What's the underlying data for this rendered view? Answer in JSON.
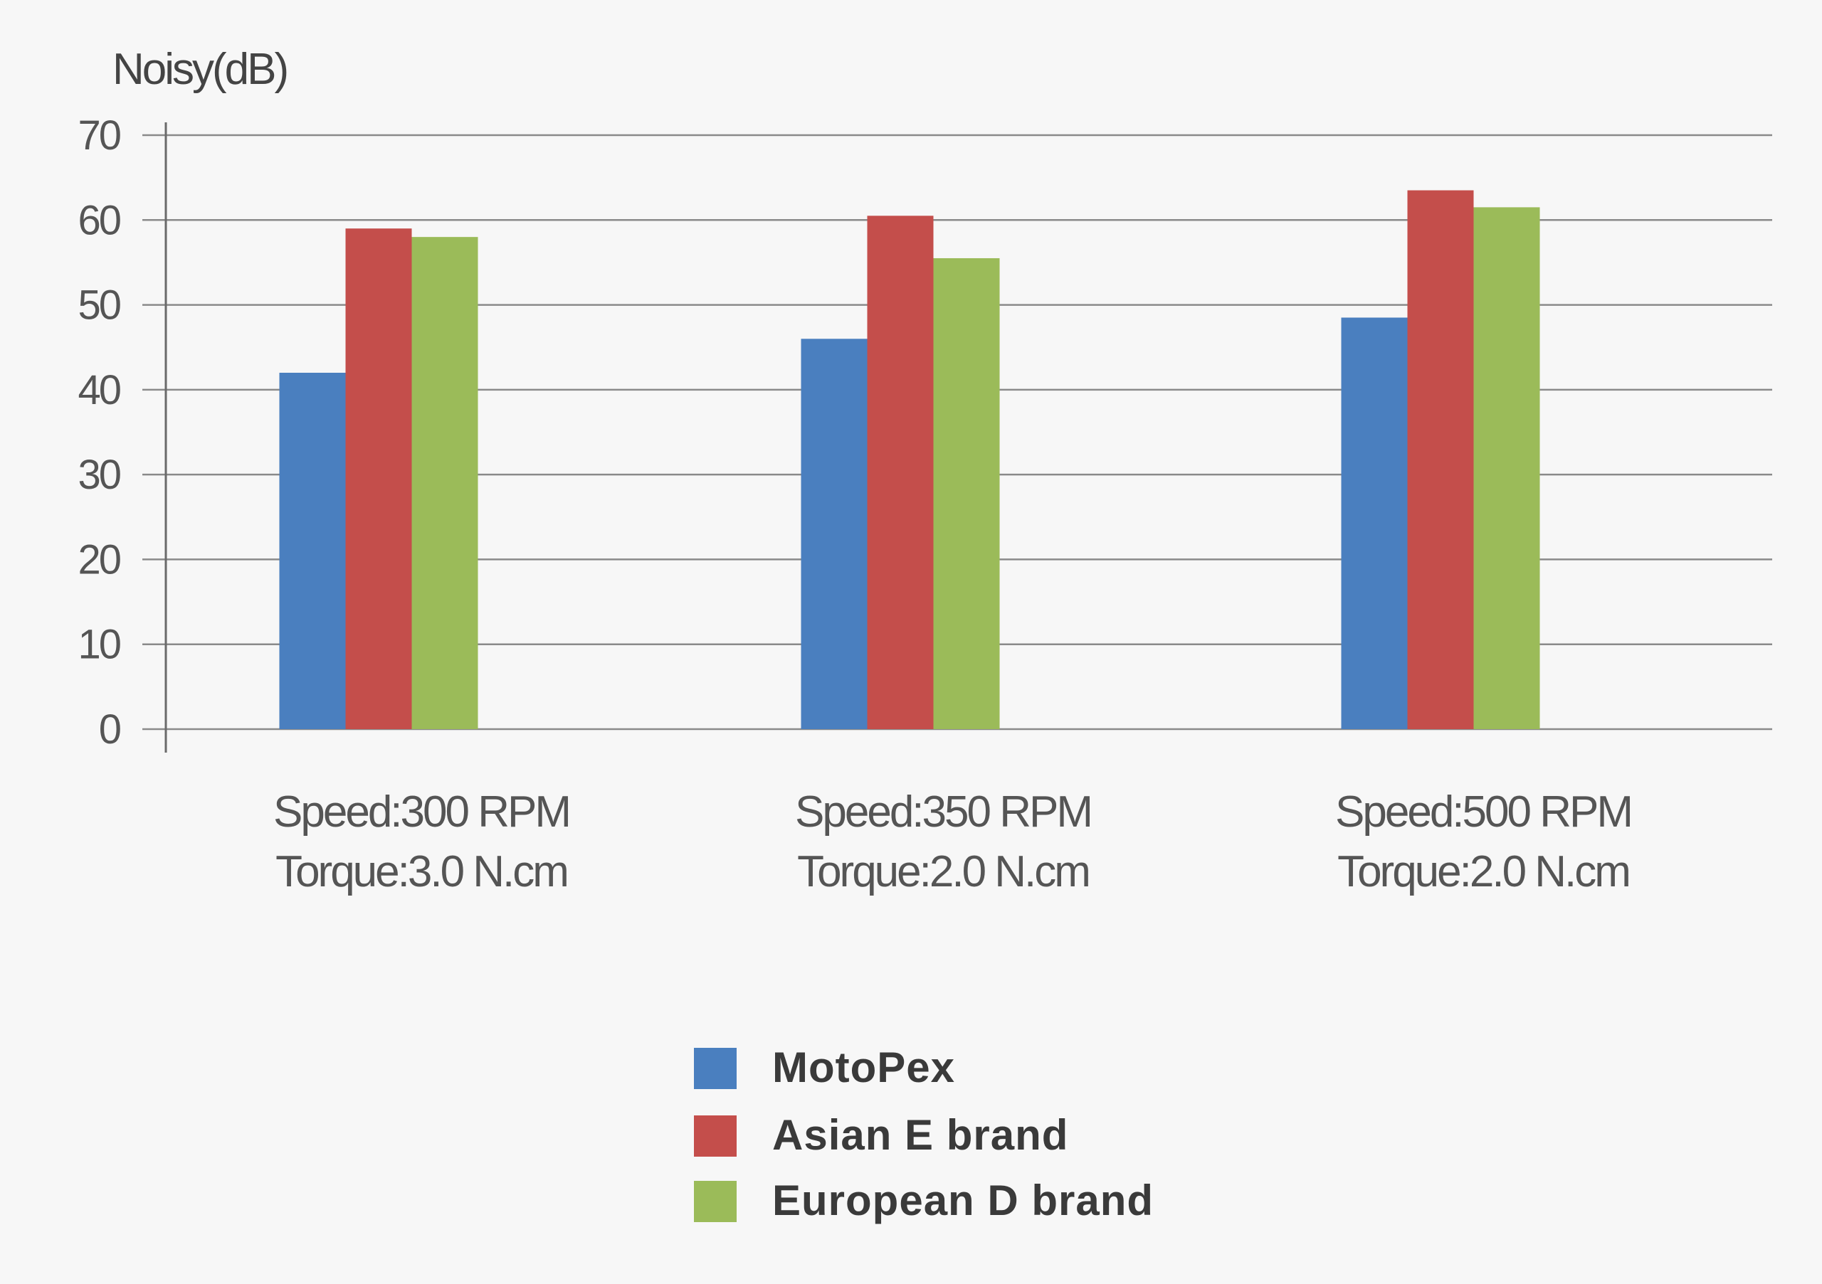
{
  "chart_data": {
    "type": "bar",
    "ylabel": "Noisy(dB)",
    "ylim": [
      0,
      70
    ],
    "yticks": [
      0,
      10,
      20,
      30,
      40,
      50,
      60,
      70
    ],
    "grid": true,
    "legend_position": "bottom-center",
    "categories": [
      [
        "Speed:300 RPM",
        "Torque:3.0 N.cm"
      ],
      [
        "Speed:350 RPM",
        "Torque:2.0 N.cm"
      ],
      [
        "Speed:500 RPM",
        "Torque:2.0 N.cm"
      ]
    ],
    "series": [
      {
        "name": "MotoPex",
        "color": "#4a7fbf",
        "values": [
          42,
          46,
          48.5
        ]
      },
      {
        "name": "Asian E brand",
        "color": "#c44e4b",
        "values": [
          59,
          60.5,
          63.5
        ]
      },
      {
        "name": "European D brand",
        "color": "#9bbb59",
        "values": [
          58,
          55.5,
          61.5
        ]
      }
    ]
  }
}
